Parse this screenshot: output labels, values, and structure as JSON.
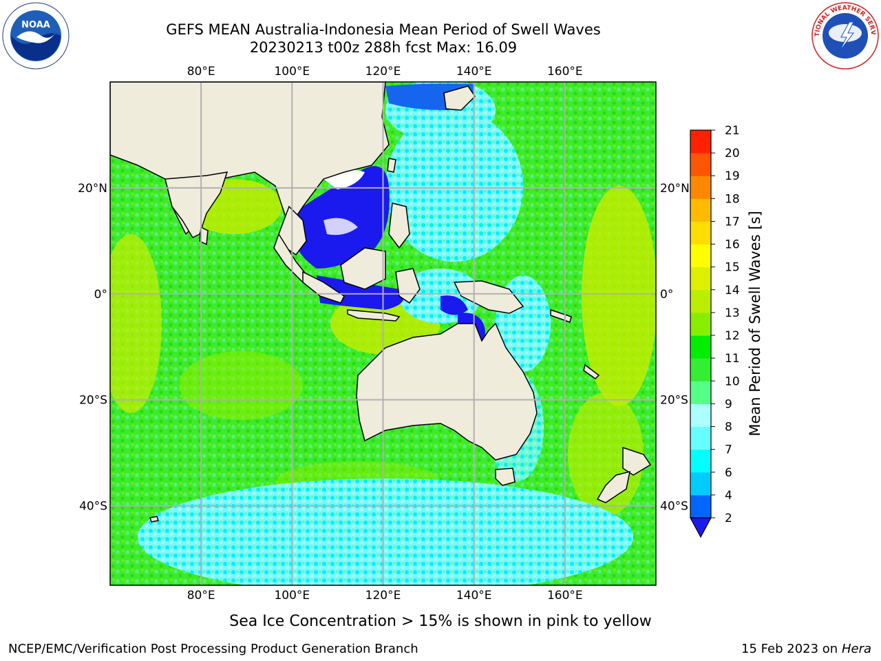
{
  "header": {
    "title_line1": "GEFS MEAN Australia-Indonesia Mean Period of Swell Waves",
    "title_line2": "20230213 t00z 288h fcst   Max: 16.09"
  },
  "logos": {
    "left_icon": "noaa-logo",
    "right_icon": "nws-logo",
    "left_text": "NOAA",
    "right_text": "NATIONAL WEATHER SERVICE"
  },
  "map": {
    "projection": "equirectangular",
    "lon_range": [
      60,
      180
    ],
    "lat_range": [
      -55,
      40
    ],
    "lon_ticks": [
      "80°E",
      "100°E",
      "120°E",
      "140°E",
      "160°E"
    ],
    "lat_ticks": [
      "20°N",
      "0°",
      "20°S",
      "40°S"
    ],
    "gridlines": true,
    "land_color": "#efecdc",
    "ocean_dominant_color": "#33ee22"
  },
  "colorbar": {
    "label": "Mean Period of Swell Waves [s]",
    "ticks": [
      "2",
      "4",
      "6",
      "7",
      "8",
      "9",
      "10",
      "11",
      "12",
      "13",
      "14",
      "15",
      "16",
      "17",
      "18",
      "19",
      "20",
      "21"
    ],
    "colors": [
      "#0066ff",
      "#00ccff",
      "#00ffff",
      "#66ffff",
      "#aaffff",
      "#55ff88",
      "#33ee33",
      "#00ee00",
      "#88ee00",
      "#bbee00",
      "#ddf000",
      "#ffff00",
      "#ffdd00",
      "#ffbb00",
      "#ff8800",
      "#ff5500",
      "#ff2200"
    ],
    "under_color": "#1a1aee",
    "extend": "min"
  },
  "caption": "Sea Ice Concentration > 15% is shown in pink to yellow",
  "footer": {
    "left": "NCEP/EMC/Verification Post Processing Product Generation Branch",
    "right_date": "15 Feb 2023 on",
    "right_host": "Hera"
  }
}
